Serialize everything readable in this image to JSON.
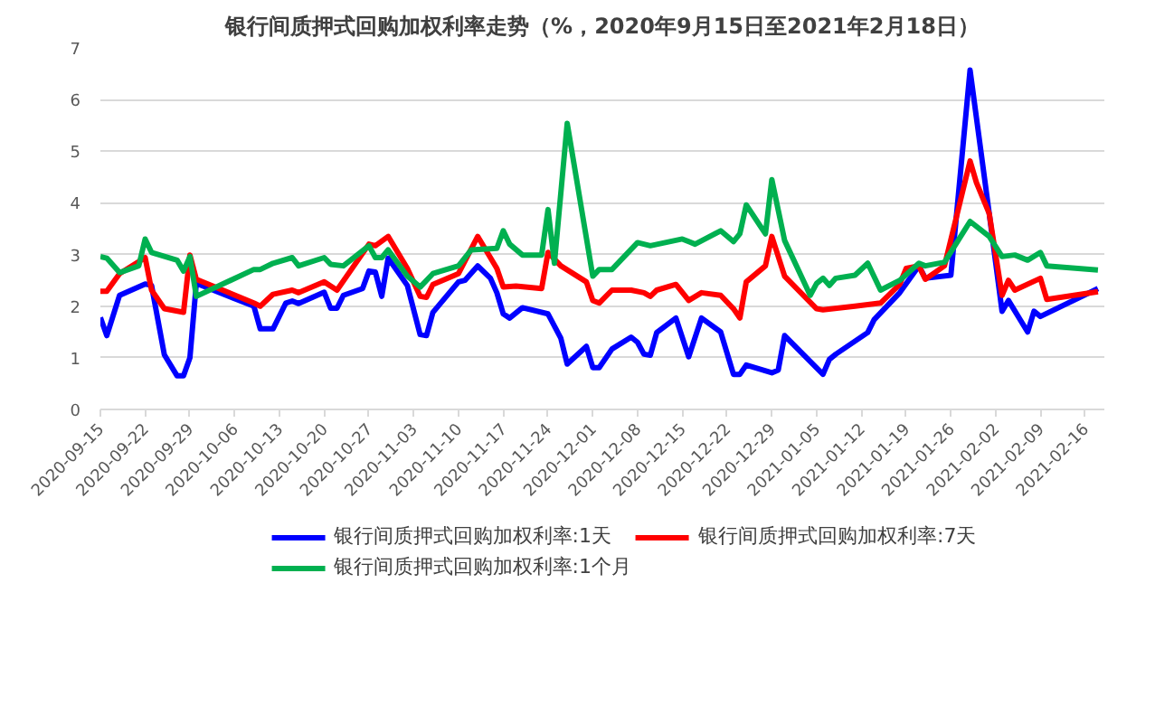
{
  "chart_data": {
    "type": "line",
    "title": "银行间质押式回购加权利率走势（%，2020年9月15日至2021年2月18日）",
    "xlim": [
      "2020-09-15",
      "2021-02-19"
    ],
    "xticks": [
      "2020-09-15",
      "2020-09-22",
      "2020-09-29",
      "2020-10-06",
      "2020-10-13",
      "2020-10-20",
      "2020-10-27",
      "2020-11-03",
      "2020-11-10",
      "2020-11-17",
      "2020-11-24",
      "2020-12-01",
      "2020-12-08",
      "2020-12-15",
      "2020-12-22",
      "2020-12-29",
      "2021-01-05",
      "2021-01-12",
      "2021-01-19",
      "2021-01-26",
      "2021-02-02",
      "2021-02-09",
      "2021-02-16"
    ],
    "ylim": [
      0,
      7
    ],
    "yticks": [
      0,
      1,
      2,
      3,
      4,
      5,
      6,
      7
    ],
    "grid": "y",
    "legend": "bottom",
    "marker": "none",
    "line_style": "solid",
    "series": [
      {
        "name": "银行间质押式回购加权利率:1天",
        "color": "#0000ff",
        "x": [
          "2020-09-15",
          "2020-09-16",
          "2020-09-18",
          "2020-09-22",
          "2020-09-23",
          "2020-09-25",
          "2020-09-27",
          "2020-09-28",
          "2020-09-29",
          "2020-09-30",
          "2020-10-09",
          "2020-10-10",
          "2020-10-12",
          "2020-10-14",
          "2020-10-15",
          "2020-10-16",
          "2020-10-20",
          "2020-10-21",
          "2020-10-22",
          "2020-10-23",
          "2020-10-26",
          "2020-10-27",
          "2020-10-28",
          "2020-10-29",
          "2020-10-30",
          "2020-11-02",
          "2020-11-04",
          "2020-11-05",
          "2020-11-06",
          "2020-11-10",
          "2020-11-11",
          "2020-11-13",
          "2020-11-15",
          "2020-11-16",
          "2020-11-17",
          "2020-11-18",
          "2020-11-20",
          "2020-11-24",
          "2020-11-26",
          "2020-11-27",
          "2020-11-30",
          "2020-12-01",
          "2020-12-02",
          "2020-12-04",
          "2020-12-07",
          "2020-12-08",
          "2020-12-09",
          "2020-12-10",
          "2020-12-11",
          "2020-12-14",
          "2020-12-16",
          "2020-12-18",
          "2020-12-21",
          "2020-12-23",
          "2020-12-24",
          "2020-12-25",
          "2020-12-29",
          "2020-12-30",
          "2020-12-31",
          "2021-01-06",
          "2021-01-07",
          "2021-01-08",
          "2021-01-13",
          "2021-01-14",
          "2021-01-18",
          "2021-01-21",
          "2021-01-22",
          "2021-01-26",
          "2021-01-29",
          "2021-02-01",
          "2021-02-03",
          "2021-02-04",
          "2021-02-07",
          "2021-02-08",
          "2021-02-09",
          "2021-02-18"
        ],
        "values": [
          1.78,
          1.43,
          2.21,
          2.43,
          2.4,
          1.06,
          0.65,
          0.65,
          1.0,
          2.44,
          2.0,
          1.56,
          1.56,
          2.06,
          2.1,
          2.05,
          2.27,
          1.96,
          1.96,
          2.21,
          2.34,
          2.68,
          2.66,
          2.19,
          2.93,
          2.4,
          1.45,
          1.43,
          1.88,
          2.47,
          2.5,
          2.78,
          2.54,
          2.26,
          1.85,
          1.77,
          1.97,
          1.85,
          1.38,
          0.88,
          1.22,
          0.81,
          0.81,
          1.17,
          1.4,
          1.3,
          1.07,
          1.05,
          1.49,
          1.77,
          1.02,
          1.77,
          1.5,
          0.68,
          0.68,
          0.86,
          0.71,
          0.76,
          1.43,
          0.68,
          0.97,
          1.07,
          1.49,
          1.74,
          2.26,
          2.78,
          2.54,
          2.6,
          6.57,
          3.79,
          1.9,
          2.11,
          1.5,
          1.9,
          1.8,
          2.34
        ]
      },
      {
        "name": "银行间质押式回购加权利率:7天",
        "color": "#ff0000",
        "x": [
          "2020-09-15",
          "2020-09-16",
          "2020-09-18",
          "2020-09-22",
          "2020-09-23",
          "2020-09-25",
          "2020-09-28",
          "2020-09-29",
          "2020-09-30",
          "2020-10-09",
          "2020-10-10",
          "2020-10-12",
          "2020-10-15",
          "2020-10-16",
          "2020-10-20",
          "2020-10-22",
          "2020-10-27",
          "2020-10-28",
          "2020-10-30",
          "2020-11-02",
          "2020-11-04",
          "2020-11-05",
          "2020-11-06",
          "2020-11-10",
          "2020-11-13",
          "2020-11-16",
          "2020-11-17",
          "2020-11-19",
          "2020-11-23",
          "2020-11-24",
          "2020-11-26",
          "2020-11-30",
          "2020-12-01",
          "2020-12-02",
          "2020-12-04",
          "2020-12-07",
          "2020-12-09",
          "2020-12-10",
          "2020-12-11",
          "2020-12-14",
          "2020-12-16",
          "2020-12-18",
          "2020-12-21",
          "2020-12-23",
          "2020-12-24",
          "2020-12-25",
          "2020-12-28",
          "2020-12-29",
          "2020-12-31",
          "2021-01-05",
          "2021-01-06",
          "2021-01-11",
          "2021-01-15",
          "2021-01-18",
          "2021-01-19",
          "2021-01-21",
          "2021-01-22",
          "2021-01-25",
          "2021-01-29",
          "2021-01-30",
          "2021-02-01",
          "2021-02-03",
          "2021-02-04",
          "2021-02-05",
          "2021-02-09",
          "2021-02-10",
          "2021-02-18"
        ],
        "values": [
          2.29,
          2.29,
          2.63,
          2.94,
          2.31,
          1.95,
          1.88,
          2.99,
          2.52,
          2.06,
          2.0,
          2.23,
          2.31,
          2.26,
          2.47,
          2.31,
          3.2,
          3.17,
          3.35,
          2.73,
          2.19,
          2.17,
          2.42,
          2.63,
          3.35,
          2.73,
          2.37,
          2.39,
          2.34,
          3.04,
          2.78,
          2.47,
          2.11,
          2.06,
          2.31,
          2.31,
          2.26,
          2.19,
          2.31,
          2.42,
          2.11,
          2.26,
          2.21,
          1.95,
          1.77,
          2.47,
          2.78,
          3.35,
          2.58,
          1.95,
          1.93,
          2.0,
          2.06,
          2.42,
          2.73,
          2.78,
          2.52,
          2.78,
          4.81,
          4.39,
          3.79,
          2.21,
          2.5,
          2.31,
          2.54,
          2.13,
          2.28
        ]
      },
      {
        "name": "银行间质押式回购加权利率:1个月",
        "color": "#00b050",
        "x": [
          "2020-09-15",
          "2020-09-16",
          "2020-09-18",
          "2020-09-21",
          "2020-09-22",
          "2020-09-23",
          "2020-09-27",
          "2020-09-28",
          "2020-09-29",
          "2020-09-30",
          "2020-10-09",
          "2020-10-10",
          "2020-10-12",
          "2020-10-15",
          "2020-10-16",
          "2020-10-20",
          "2020-10-21",
          "2020-10-23",
          "2020-10-27",
          "2020-10-28",
          "2020-10-29",
          "2020-10-30",
          "2020-11-02",
          "2020-11-04",
          "2020-11-06",
          "2020-11-10",
          "2020-11-12",
          "2020-11-16",
          "2020-11-17",
          "2020-11-18",
          "2020-11-20",
          "2020-11-23",
          "2020-11-24",
          "2020-11-25",
          "2020-11-27",
          "2020-12-01",
          "2020-12-02",
          "2020-12-04",
          "2020-12-08",
          "2020-12-10",
          "2020-12-15",
          "2020-12-17",
          "2020-12-21",
          "2020-12-23",
          "2020-12-24",
          "2020-12-25",
          "2020-12-28",
          "2020-12-29",
          "2020-12-31",
          "2021-01-04",
          "2021-01-05",
          "2021-01-06",
          "2021-01-07",
          "2021-01-08",
          "2021-01-11",
          "2021-01-13",
          "2021-01-15",
          "2021-01-18",
          "2021-01-21",
          "2021-01-22",
          "2021-01-25",
          "2021-01-29",
          "2021-02-01",
          "2021-02-03",
          "2021-02-05",
          "2021-02-07",
          "2021-02-09",
          "2021-02-10",
          "2021-02-18"
        ],
        "values": [
          2.96,
          2.93,
          2.65,
          2.78,
          3.3,
          3.04,
          2.89,
          2.68,
          2.96,
          2.19,
          2.71,
          2.71,
          2.83,
          2.94,
          2.78,
          2.94,
          2.81,
          2.78,
          3.17,
          2.94,
          2.94,
          3.09,
          2.58,
          2.37,
          2.63,
          2.78,
          3.09,
          3.12,
          3.46,
          3.2,
          2.99,
          2.99,
          3.87,
          2.83,
          5.54,
          2.58,
          2.71,
          2.71,
          3.23,
          3.17,
          3.3,
          3.2,
          3.46,
          3.25,
          3.4,
          3.96,
          3.4,
          4.45,
          3.27,
          2.21,
          2.44,
          2.54,
          2.4,
          2.54,
          2.6,
          2.83,
          2.31,
          2.5,
          2.83,
          2.78,
          2.85,
          3.64,
          3.35,
          2.96,
          2.99,
          2.89,
          3.04,
          2.78,
          2.7
        ]
      }
    ]
  }
}
